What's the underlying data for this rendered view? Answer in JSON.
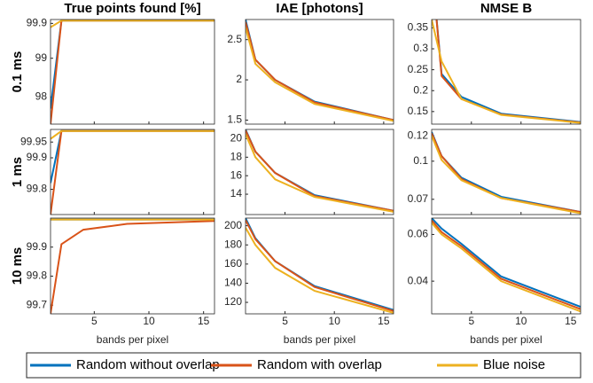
{
  "chart_data": [
    {
      "type": "line",
      "title": "True points found [%]",
      "ylabel": "0.1 ms",
      "x": [
        1,
        2,
        4,
        8,
        16
      ],
      "xlim": [
        1,
        16
      ],
      "xticks": [
        5,
        10,
        15
      ],
      "ylim": [
        97.3,
        100
      ],
      "yticks": [
        98,
        99,
        99.9
      ],
      "series": [
        {
          "name": "Random without overlap",
          "color": "#0072bd",
          "values": [
            97.7,
            99.97,
            99.97,
            99.97,
            99.97
          ]
        },
        {
          "name": "Random with overlap",
          "color": "#d95319",
          "values": [
            97.3,
            99.97,
            99.97,
            99.97,
            99.97
          ]
        },
        {
          "name": "Blue noise",
          "color": "#edb120",
          "values": [
            99.8,
            99.97,
            99.97,
            99.97,
            99.97
          ]
        }
      ]
    },
    {
      "type": "line",
      "title": "IAE [photons]",
      "x": [
        1,
        2,
        4,
        8,
        16
      ],
      "xlim": [
        1,
        16
      ],
      "xticks": [
        5,
        10,
        15
      ],
      "ylim": [
        1.45,
        2.75
      ],
      "yticks": [
        1.5,
        2,
        2.5
      ],
      "series": [
        {
          "color": "#0072bd",
          "values": [
            2.75,
            2.25,
            2.0,
            1.73,
            1.5
          ]
        },
        {
          "color": "#d95319",
          "values": [
            2.72,
            2.25,
            2.0,
            1.72,
            1.5
          ]
        },
        {
          "color": "#edb120",
          "values": [
            2.65,
            2.2,
            1.97,
            1.7,
            1.49
          ]
        }
      ]
    },
    {
      "type": "line",
      "title": "NMSE B",
      "x": [
        1,
        2,
        4,
        8,
        16
      ],
      "xlim": [
        1,
        16
      ],
      "xticks": [
        5,
        10,
        15
      ],
      "ylim": [
        0.12,
        0.37
      ],
      "yticks": [
        0.15,
        0.2,
        0.25,
        0.3,
        0.35
      ],
      "series": [
        {
          "color": "#0072bd",
          "values": [
            0.5,
            0.24,
            0.185,
            0.145,
            0.125
          ]
        },
        {
          "color": "#d95319",
          "values": [
            0.5,
            0.235,
            0.18,
            0.143,
            0.124
          ]
        },
        {
          "color": "#edb120",
          "values": [
            0.37,
            0.27,
            0.18,
            0.142,
            0.123
          ]
        }
      ]
    },
    {
      "type": "line",
      "ylabel": "1 ms",
      "x": [
        1,
        2,
        4,
        8,
        16
      ],
      "xlim": [
        1,
        16
      ],
      "xticks": [
        5,
        10,
        15
      ],
      "ylim": [
        99.72,
        99.99
      ],
      "yticks": [
        99.8,
        99.9,
        99.95
      ],
      "series": [
        {
          "color": "#0072bd",
          "values": [
            99.82,
            99.985,
            99.985,
            99.985,
            99.985
          ]
        },
        {
          "color": "#d95319",
          "values": [
            99.72,
            99.985,
            99.985,
            99.985,
            99.985
          ]
        },
        {
          "color": "#edb120",
          "values": [
            99.96,
            99.985,
            99.985,
            99.985,
            99.985
          ]
        }
      ]
    },
    {
      "type": "line",
      "x": [
        1,
        2,
        4,
        8,
        16
      ],
      "xlim": [
        1,
        16
      ],
      "xticks": [
        5,
        10,
        15
      ],
      "ylim": [
        11.8,
        21
      ],
      "yticks": [
        14,
        16,
        18,
        20
      ],
      "series": [
        {
          "color": "#0072bd",
          "values": [
            21,
            18.6,
            16.3,
            13.9,
            12.2
          ]
        },
        {
          "color": "#d95319",
          "values": [
            20.9,
            18.6,
            16.3,
            13.8,
            12.2
          ]
        },
        {
          "color": "#edb120",
          "values": [
            20.5,
            18,
            15.6,
            13.7,
            12.1
          ]
        }
      ]
    },
    {
      "type": "line",
      "x": [
        1,
        2,
        4,
        8,
        16
      ],
      "xlim": [
        1,
        16
      ],
      "xticks": [
        5,
        10,
        15
      ],
      "ylim": [
        0.058,
        0.125
      ],
      "yticks": [
        0.07,
        0.1,
        0.12
      ],
      "series": [
        {
          "color": "#0072bd",
          "values": [
            0.123,
            0.104,
            0.087,
            0.072,
            0.06
          ]
        },
        {
          "color": "#d95319",
          "values": [
            0.122,
            0.104,
            0.086,
            0.071,
            0.06
          ]
        },
        {
          "color": "#edb120",
          "values": [
            0.12,
            0.101,
            0.085,
            0.071,
            0.059
          ]
        }
      ]
    },
    {
      "type": "line",
      "ylabel": "10 ms",
      "xlabel": "bands per pixel",
      "x": [
        1,
        2,
        4,
        8,
        16
      ],
      "xlim": [
        1,
        16
      ],
      "xticks": [
        5,
        10,
        15
      ],
      "ylim": [
        99.67,
        100
      ],
      "yticks": [
        99.7,
        99.8,
        99.9
      ],
      "series": [
        {
          "color": "#0072bd",
          "values": [
            99.995,
            99.995,
            99.995,
            99.995,
            99.995
          ]
        },
        {
          "color": "#d95319",
          "values": [
            99.67,
            99.91,
            99.96,
            99.98,
            99.99
          ]
        },
        {
          "color": "#edb120",
          "values": [
            99.995,
            99.995,
            99.995,
            99.995,
            99.995
          ]
        }
      ]
    },
    {
      "type": "line",
      "xlabel": "bands per pixel",
      "x": [
        1,
        2,
        4,
        8,
        16
      ],
      "xlim": [
        1,
        16
      ],
      "xticks": [
        5,
        10,
        15
      ],
      "ylim": [
        108,
        208
      ],
      "yticks": [
        120,
        140,
        160,
        180,
        200
      ],
      "series": [
        {
          "color": "#0072bd",
          "values": [
            208,
            187,
            163,
            137,
            112
          ]
        },
        {
          "color": "#d95319",
          "values": [
            206,
            186,
            163,
            136,
            111
          ]
        },
        {
          "color": "#edb120",
          "values": [
            198,
            180,
            156,
            132,
            109
          ]
        }
      ]
    },
    {
      "type": "line",
      "xlabel": "bands per pixel",
      "x": [
        1,
        2,
        4,
        8,
        16
      ],
      "xlim": [
        1,
        16
      ],
      "xticks": [
        5,
        10,
        15
      ],
      "ylim": [
        0.026,
        0.067
      ],
      "yticks": [
        0.04,
        0.06
      ],
      "series": [
        {
          "color": "#0072bd",
          "values": [
            0.067,
            0.0625,
            0.056,
            0.042,
            0.029
          ]
        },
        {
          "color": "#d95319",
          "values": [
            0.066,
            0.061,
            0.055,
            0.041,
            0.028
          ]
        },
        {
          "color": "#edb120",
          "values": [
            0.065,
            0.06,
            0.054,
            0.04,
            0.027
          ]
        }
      ]
    }
  ]
}
